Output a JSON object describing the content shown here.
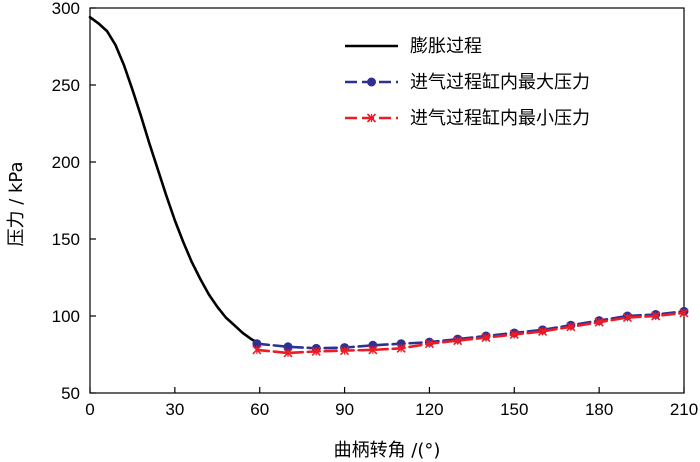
{
  "chart_data": {
    "type": "line",
    "xlabel": "曲柄转角 /(°)",
    "ylabel": "压力 / kPa",
    "xlim": [
      0,
      210
    ],
    "ylim": [
      50,
      300
    ],
    "xticks": [
      0,
      30,
      60,
      90,
      120,
      150,
      180,
      210
    ],
    "yticks": [
      50,
      100,
      150,
      200,
      250,
      300
    ],
    "grid": false,
    "legend_position": "top-right",
    "series": [
      {
        "name": "膨胀过程",
        "color": "#000000",
        "marker": "none",
        "x": [
          0,
          3,
          6,
          9,
          12,
          15,
          18,
          21,
          24,
          27,
          30,
          33,
          36,
          39,
          42,
          45,
          48,
          51,
          54,
          57,
          59
        ],
        "y": [
          294,
          290,
          285,
          276,
          263,
          247,
          230,
          212,
          195,
          178,
          162,
          148,
          135,
          124,
          114,
          106,
          99,
          94,
          89,
          85,
          83
        ]
      },
      {
        "name": "进气过程缸内最大压力",
        "color": "#2e3192",
        "marker": "circle",
        "x": [
          59,
          70,
          80,
          90,
          100,
          110,
          120,
          130,
          140,
          150,
          160,
          170,
          180,
          190,
          200,
          210
        ],
        "y": [
          82,
          80,
          79,
          79.5,
          81,
          82,
          83,
          85,
          87,
          89,
          91,
          94,
          97,
          100,
          101,
          103
        ]
      },
      {
        "name": "进气过程缸内最小压力",
        "color": "#ed1c24",
        "marker": "x",
        "x": [
          59,
          70,
          80,
          90,
          100,
          110,
          120,
          130,
          140,
          150,
          160,
          170,
          180,
          190,
          200,
          210
        ],
        "y": [
          78,
          76,
          77,
          77.5,
          78,
          79,
          82,
          84,
          86,
          88,
          90,
          93,
          96,
          99,
          100,
          102
        ]
      }
    ]
  }
}
